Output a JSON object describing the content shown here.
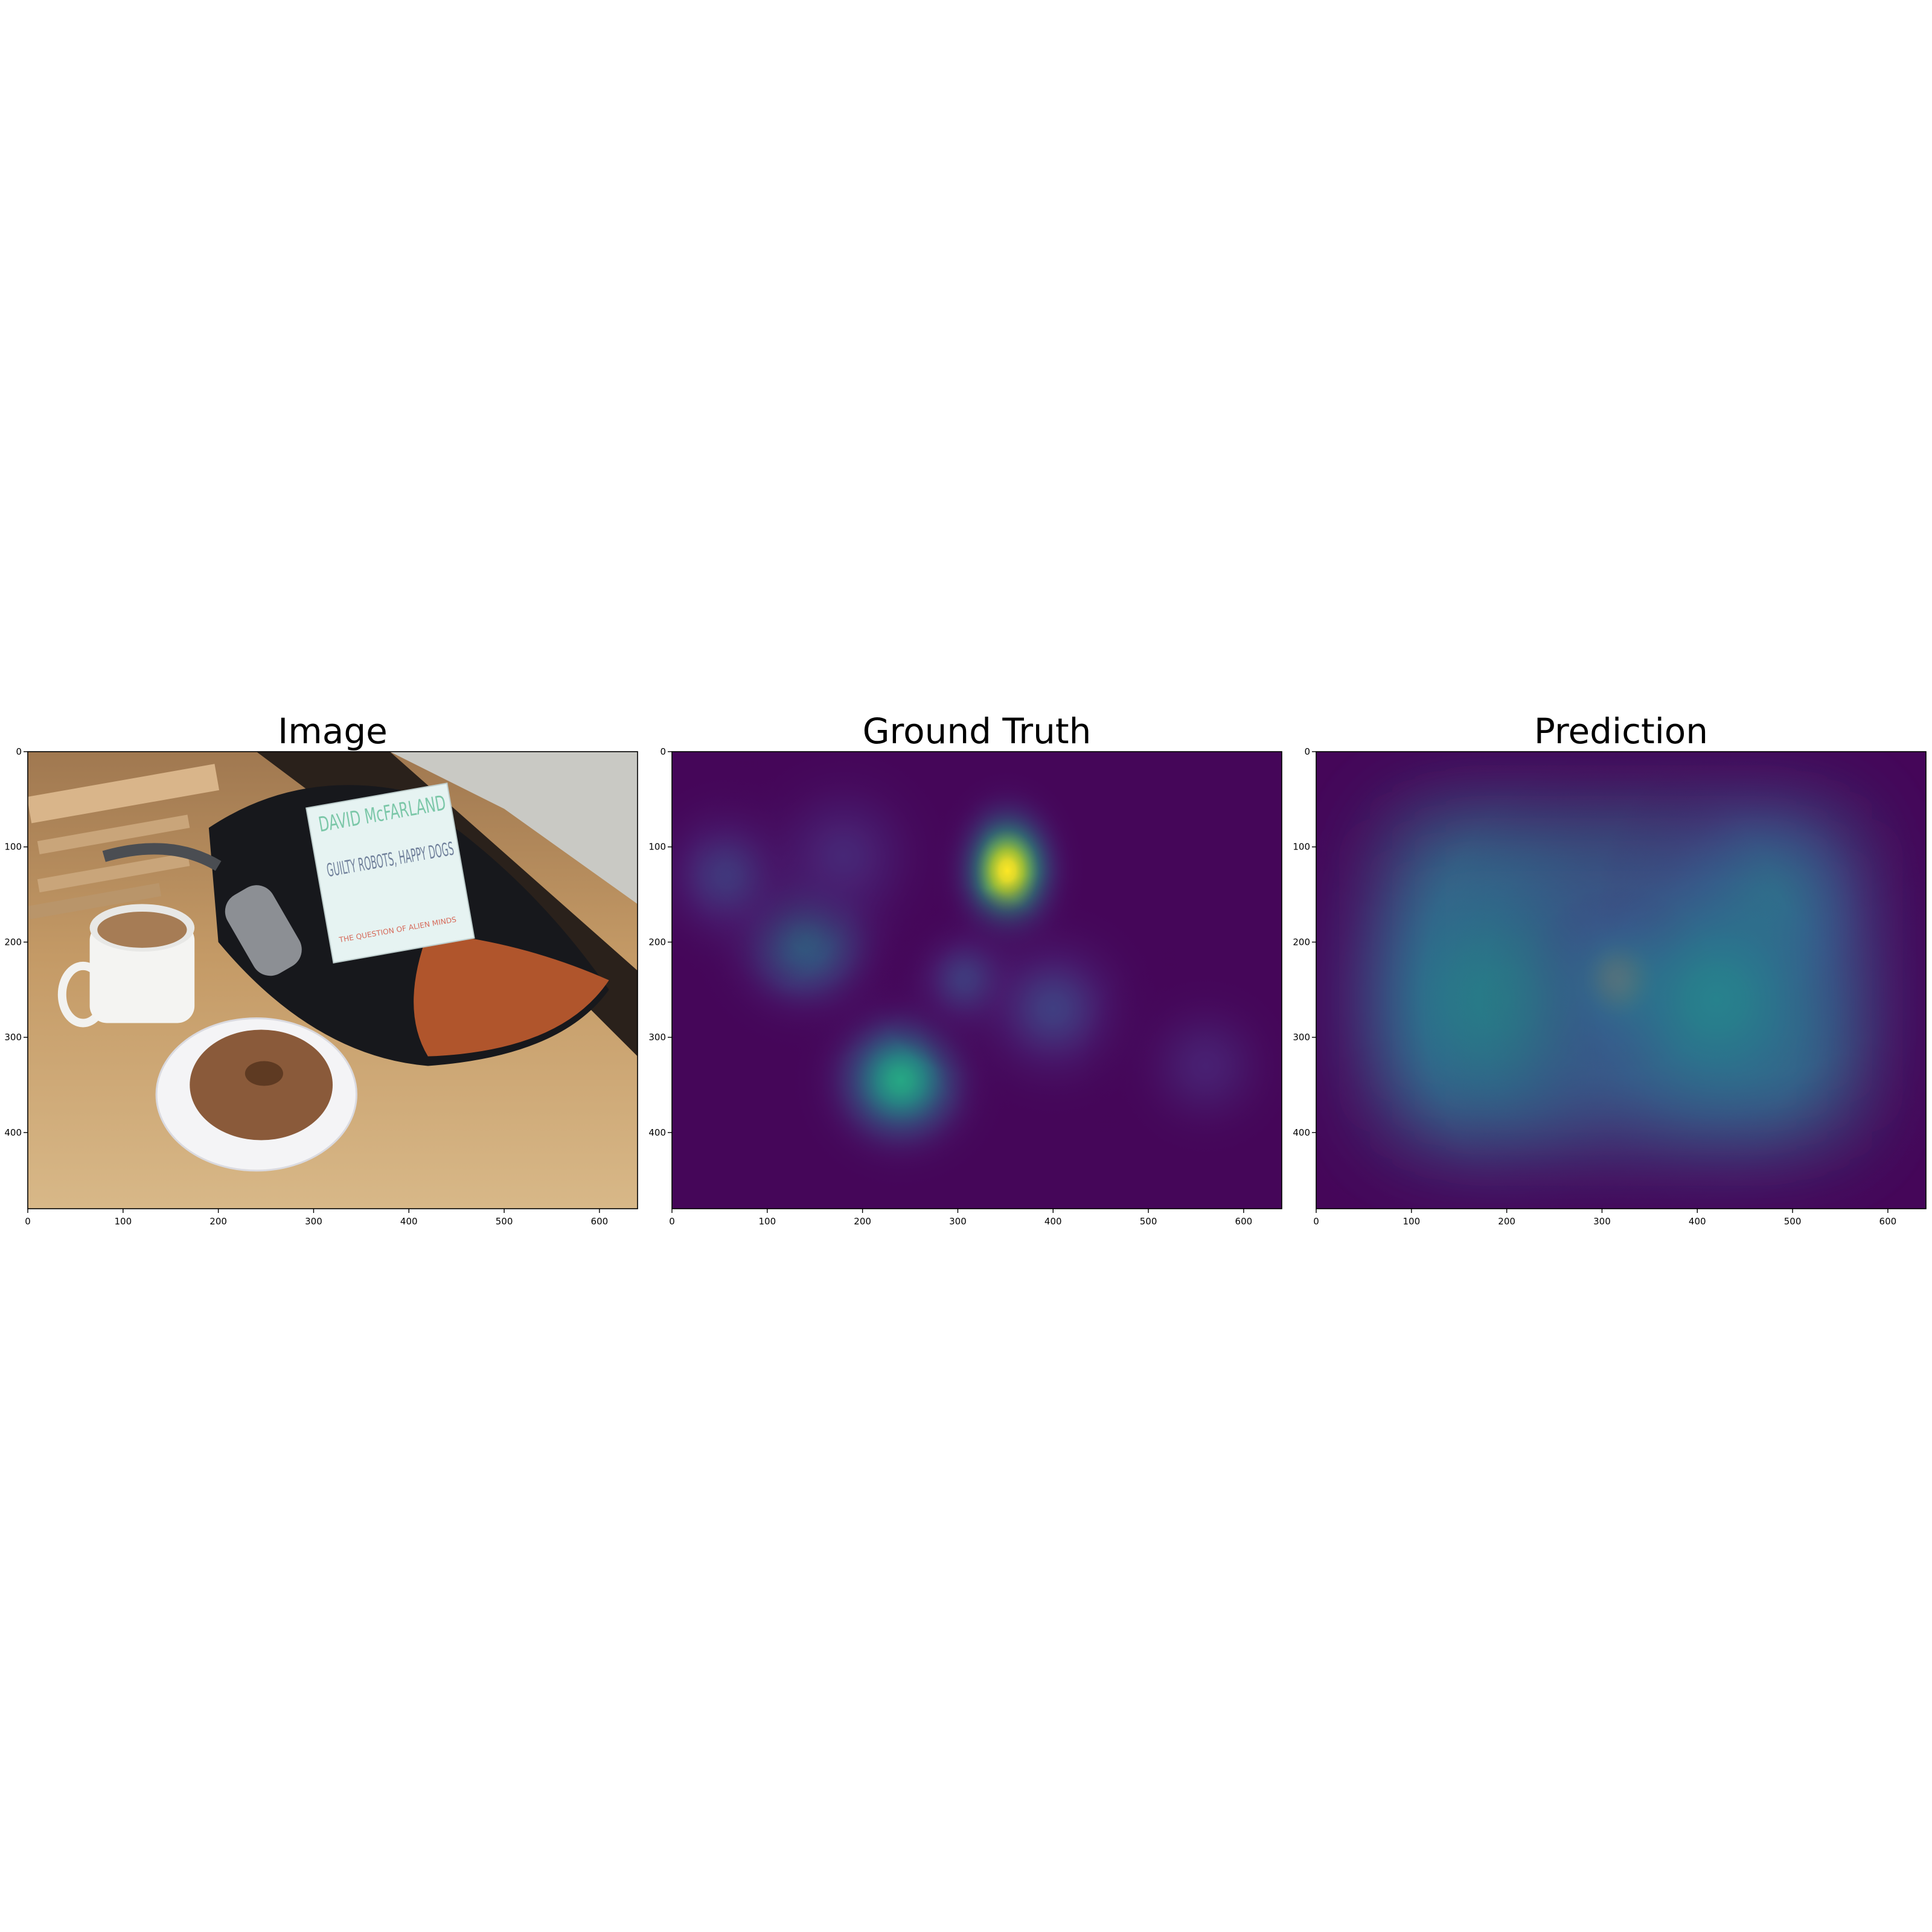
{
  "figure": {
    "colormap": "viridis",
    "colors": {
      "background": "#ffffff",
      "axis": "#000000",
      "viridis_low": "#440154",
      "viridis_mid": "#21918c",
      "viridis_high": "#fde725"
    }
  },
  "chart_data": [
    {
      "type": "image",
      "title": "Image",
      "xlim": [
        0,
        640
      ],
      "ylim": [
        480,
        0
      ],
      "xticks": [
        0,
        100,
        200,
        300,
        400,
        500,
        600
      ],
      "yticks": [
        0,
        100,
        200,
        300,
        400
      ],
      "image_text": [
        "DAVID McFARLAND",
        "GUILTY ROBOTS, HAPPY DOGS",
        "THE QUESTION OF ALIEN MINDS"
      ],
      "scene": [
        {
          "name": "wooden-chair",
          "x": 100,
          "y": 60
        },
        {
          "name": "coffee-mug",
          "x": 120,
          "y": 225
        },
        {
          "name": "donut-on-plate",
          "x": 240,
          "y": 360
        },
        {
          "name": "backpack",
          "x": 400,
          "y": 170
        },
        {
          "name": "book",
          "x": 380,
          "y": 125
        },
        {
          "name": "thermos",
          "x": 250,
          "y": 175
        }
      ]
    },
    {
      "type": "heatmap",
      "title": "Ground Truth",
      "xlim": [
        0,
        640
      ],
      "ylim": [
        480,
        0
      ],
      "xticks": [
        0,
        100,
        200,
        300,
        400,
        500,
        600
      ],
      "yticks": [
        0,
        100,
        200,
        300,
        400
      ],
      "blobs": [
        {
          "x": 352,
          "y": 125,
          "value": 1.0,
          "spread": 38
        },
        {
          "x": 240,
          "y": 345,
          "value": 0.6,
          "spread": 55
        },
        {
          "x": 140,
          "y": 195,
          "value": 0.42,
          "spread": 60
        },
        {
          "x": 60,
          "y": 130,
          "value": 0.2,
          "spread": 60
        },
        {
          "x": 310,
          "y": 240,
          "value": 0.22,
          "spread": 45
        },
        {
          "x": 400,
          "y": 270,
          "value": 0.2,
          "spread": 65
        },
        {
          "x": 180,
          "y": 110,
          "value": 0.14,
          "spread": 70
        },
        {
          "x": 560,
          "y": 330,
          "value": 0.12,
          "spread": 60
        }
      ]
    },
    {
      "type": "heatmap",
      "title": "Prediction",
      "xlim": [
        0,
        640
      ],
      "ylim": [
        480,
        0
      ],
      "xticks": [
        0,
        100,
        200,
        300,
        400,
        500,
        600
      ],
      "yticks": [
        0,
        100,
        200,
        300,
        400
      ],
      "blobs": [
        {
          "x": 318,
          "y": 240,
          "value": 1.0,
          "spread": 45
        },
        {
          "x": 470,
          "y": 160,
          "value": 0.5,
          "spread": 80
        },
        {
          "x": 200,
          "y": 260,
          "value": 0.48,
          "spread": 140
        },
        {
          "x": 420,
          "y": 260,
          "value": 0.44,
          "spread": 140
        }
      ],
      "plateau": {
        "x0": 80,
        "x1": 560,
        "y0": 70,
        "y1": 400,
        "value": 0.46,
        "edge": 45
      }
    }
  ]
}
